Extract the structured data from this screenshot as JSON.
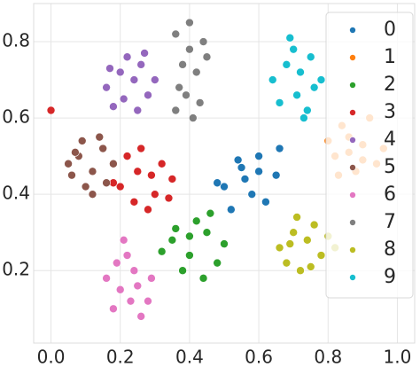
{
  "chart_data": {
    "type": "scatter",
    "xlim": [
      -0.05,
      1.05
    ],
    "ylim": [
      0.01,
      0.9
    ],
    "xticks": [
      {
        "value": 0,
        "label": "0.0"
      },
      0.2,
      0.4,
      0.6,
      0.8,
      {
        "value": 1,
        "label": "1.0"
      }
    ],
    "yticks": [
      0.2,
      0.4,
      0.6,
      0.8
    ],
    "grid": true,
    "legend": "upper right",
    "series": [
      {
        "name": "0",
        "color": "#1f77b4",
        "x": [
          0.5,
          0.55,
          0.6,
          0.65,
          0.58,
          0.52,
          0.62,
          0.56,
          0.66,
          0.48,
          0.6,
          0.54
        ],
        "values": [
          0.42,
          0.47,
          0.5,
          0.45,
          0.4,
          0.36,
          0.38,
          0.44,
          0.52,
          0.43,
          0.46,
          0.49
        ]
      },
      {
        "name": "1",
        "color": "#ff7f0e",
        "x": [
          0.82,
          0.86,
          0.9,
          0.94,
          0.84,
          0.88,
          0.92,
          0.8,
          0.96,
          0.86,
          0.9,
          0.83
        ],
        "values": [
          0.5,
          0.55,
          0.53,
          0.48,
          0.58,
          0.46,
          0.6,
          0.54,
          0.52,
          0.51,
          0.49,
          0.45
        ]
      },
      {
        "name": "2",
        "color": "#2ca02c",
        "x": [
          0.35,
          0.4,
          0.45,
          0.48,
          0.38,
          0.42,
          0.44,
          0.32,
          0.5,
          0.4,
          0.46,
          0.36
        ],
        "values": [
          0.28,
          0.24,
          0.3,
          0.22,
          0.2,
          0.33,
          0.18,
          0.25,
          0.27,
          0.29,
          0.35,
          0.31
        ]
      },
      {
        "name": "3",
        "color": "#d62728",
        "x": [
          0.2,
          0.25,
          0.3,
          0.35,
          0.22,
          0.28,
          0.32,
          0.26,
          0.24,
          0.34,
          0.29,
          0.18,
          0.0
        ],
        "values": [
          0.42,
          0.46,
          0.4,
          0.44,
          0.5,
          0.36,
          0.48,
          0.52,
          0.38,
          0.39,
          0.45,
          0.43,
          0.62
        ]
      },
      {
        "name": "4",
        "color": "#9467bd",
        "x": [
          0.16,
          0.2,
          0.24,
          0.28,
          0.18,
          0.22,
          0.26,
          0.3,
          0.21,
          0.25,
          0.17,
          0.27
        ],
        "values": [
          0.68,
          0.72,
          0.7,
          0.66,
          0.63,
          0.76,
          0.74,
          0.7,
          0.65,
          0.62,
          0.73,
          0.77
        ]
      },
      {
        "name": "5",
        "color": "#8c564b",
        "x": [
          0.05,
          0.08,
          0.12,
          0.15,
          0.1,
          0.06,
          0.14,
          0.18,
          0.09,
          0.12,
          0.16,
          0.07
        ],
        "values": [
          0.48,
          0.5,
          0.46,
          0.52,
          0.42,
          0.45,
          0.55,
          0.48,
          0.54,
          0.4,
          0.43,
          0.51
        ]
      },
      {
        "name": "6",
        "color": "#e377c2",
        "x": [
          0.16,
          0.2,
          0.24,
          0.28,
          0.18,
          0.22,
          0.26,
          0.21,
          0.25,
          0.19,
          0.29,
          0.23
        ],
        "values": [
          0.18,
          0.15,
          0.2,
          0.12,
          0.1,
          0.24,
          0.08,
          0.28,
          0.16,
          0.22,
          0.18,
          0.12
        ]
      },
      {
        "name": "7",
        "color": "#7f7f7f",
        "x": [
          0.36,
          0.4,
          0.44,
          0.38,
          0.42,
          0.4,
          0.37,
          0.43,
          0.36,
          0.41,
          0.39,
          0.45
        ],
        "values": [
          0.82,
          0.78,
          0.8,
          0.74,
          0.72,
          0.85,
          0.68,
          0.64,
          0.62,
          0.6,
          0.66,
          0.76
        ]
      },
      {
        "name": "8",
        "color": "#bcbd22",
        "x": [
          0.66,
          0.7,
          0.74,
          0.78,
          0.72,
          0.68,
          0.76,
          0.8,
          0.71,
          0.75,
          0.69,
          0.82
        ],
        "values": [
          0.26,
          0.3,
          0.28,
          0.24,
          0.2,
          0.22,
          0.32,
          0.29,
          0.34,
          0.21,
          0.27,
          0.26
        ]
      },
      {
        "name": "9",
        "color": "#17becf",
        "x": [
          0.64,
          0.68,
          0.72,
          0.76,
          0.66,
          0.7,
          0.74,
          0.78,
          0.71,
          0.69,
          0.75,
          0.73
        ],
        "values": [
          0.7,
          0.74,
          0.72,
          0.68,
          0.64,
          0.78,
          0.62,
          0.7,
          0.66,
          0.81,
          0.76,
          0.6
        ]
      }
    ]
  }
}
